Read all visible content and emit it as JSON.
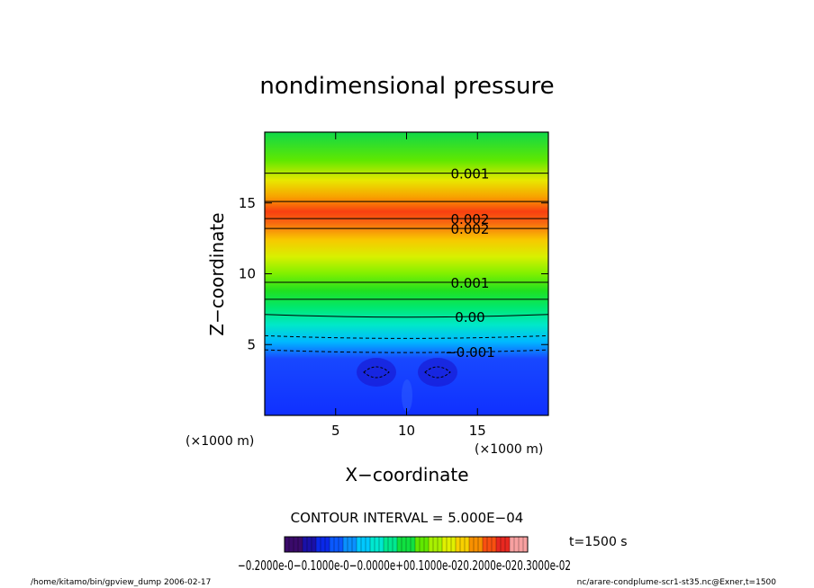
{
  "chart_data": {
    "type": "heatmap",
    "title": "nondimensional pressure",
    "xlabel": "X−coordinate",
    "ylabel": "Z−coordinate",
    "x_unit_left": "(×1000 m)",
    "x_unit_right": "(×1000 m)",
    "xlim": [
      0,
      20
    ],
    "ylim": [
      0,
      20
    ],
    "xticks": [
      5,
      10,
      15
    ],
    "yticks": [
      5,
      10,
      15
    ],
    "value_range": [
      -0.002,
      0.003
    ],
    "contour_interval_text": "CONTOUR INTERVAL = 5.000E−04",
    "contour_levels_z": [
      {
        "z": 17.1,
        "value": 0.001
      },
      {
        "z": 15.1,
        "value": 0.0015
      },
      {
        "z": 13.9,
        "value": 0.002
      },
      {
        "z": 13.2,
        "value": 0.002
      },
      {
        "z": 9.4,
        "value": 0.001
      },
      {
        "z": 8.2,
        "value": 0.0005
      },
      {
        "z": 7.0,
        "value": 0.0
      },
      {
        "z": 5.5,
        "value": -0.0005
      },
      {
        "z": 4.5,
        "value": -0.001
      }
    ],
    "contour_labels": [
      {
        "text": "0.001",
        "z": 17.1
      },
      {
        "text": "0.002",
        "z": 13.9
      },
      {
        "text": "0.002",
        "z": 13.2
      },
      {
        "text": "0.001",
        "z": 9.4
      },
      {
        "text": "0.00",
        "z": 7.0
      },
      {
        "text": "−0.001",
        "z": 4.5
      }
    ],
    "colorbar": {
      "min": -0.002,
      "max": 0.003,
      "tick_labels_text": "−0.2000e-0−0.1000e-0−0.0000e+00.1000e-020.2000e-020.3000e-02",
      "colors": [
        "#3a0a6a",
        "#1a10a8",
        "#0a28e8",
        "#0a58ff",
        "#0a90ff",
        "#00c8ff",
        "#00e8d0",
        "#00e890",
        "#10e040",
        "#60e800",
        "#a8f000",
        "#e0f000",
        "#f8d000",
        "#f89000",
        "#f85010",
        "#e82820",
        "#f8a0a0"
      ]
    }
  },
  "time_label": "t=1500 s",
  "footer": {
    "left": "/home/kitamo/bin/gpview_dump  2006-02-17",
    "right": "nc/arare-condplume-scr1-st35.nc@Exner,t=1500"
  }
}
